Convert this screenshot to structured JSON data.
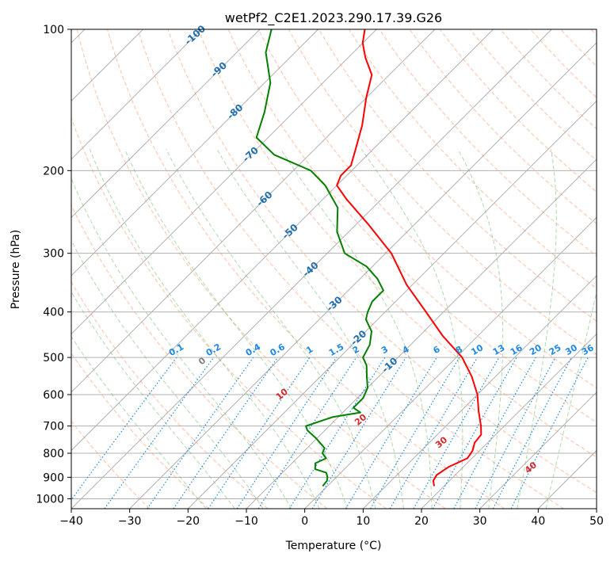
{
  "chart_data": {
    "type": "line",
    "title": "wetPf2_C2E1.2023.290.17.39.G26",
    "xlabel": "Temperature (°C)",
    "ylabel": "Pressure (hPa)",
    "xlim": [
      -40,
      50
    ],
    "ylim": [
      1050,
      100
    ],
    "x_ticks": [
      -40,
      -30,
      -20,
      -10,
      0,
      10,
      20,
      30,
      40,
      50
    ],
    "y_ticks": [
      100,
      200,
      300,
      400,
      500,
      600,
      700,
      800,
      900,
      1000
    ],
    "skew": 35,
    "colors": {
      "temperature": "#ff0000",
      "dewpoint": "#008000",
      "dry_adiabat": "#ff8c5a",
      "moist_adiabat": "#5fb55f",
      "mixing_ratio": "#1e88e5",
      "isotherm_label": "#1f6fb0",
      "dry_label": "#d62728",
      "grid": "#b0b0b0"
    },
    "series": [
      {
        "name": "Temperature",
        "points": [
          [
            18.3,
            940
          ],
          [
            17.2,
            915
          ],
          [
            16.8,
            890
          ],
          [
            17.5,
            855
          ],
          [
            19.2,
            820
          ],
          [
            18.8,
            790
          ],
          [
            17.8,
            760
          ],
          [
            17.5,
            730
          ],
          [
            16.0,
            700
          ],
          [
            13.0,
            650
          ],
          [
            10.0,
            600
          ],
          [
            6.0,
            550
          ],
          [
            1.0,
            500
          ],
          [
            -6.0,
            450
          ],
          [
            -13.0,
            400
          ],
          [
            -21.0,
            350
          ],
          [
            -29.0,
            300
          ],
          [
            -38.0,
            260
          ],
          [
            -46.0,
            230
          ],
          [
            -50.0,
            215
          ],
          [
            -51.0,
            205
          ],
          [
            -51.0,
            195
          ],
          [
            -53.0,
            180
          ],
          [
            -56.0,
            160
          ],
          [
            -60.0,
            140
          ],
          [
            -63.0,
            125
          ],
          [
            -67.0,
            115
          ],
          [
            -70.0,
            107
          ],
          [
            -72.0,
            100
          ]
        ]
      },
      {
        "name": "Dewpoint",
        "points": [
          [
            -0.8,
            940
          ],
          [
            -1.0,
            915
          ],
          [
            -1.5,
            900
          ],
          [
            -2.5,
            880
          ],
          [
            -5.0,
            865
          ],
          [
            -6.0,
            840
          ],
          [
            -5.0,
            820
          ],
          [
            -6.5,
            800
          ],
          [
            -7.0,
            780
          ],
          [
            -10.0,
            745
          ],
          [
            -13.0,
            715
          ],
          [
            -14.0,
            700
          ],
          [
            -11.0,
            670
          ],
          [
            -7.0,
            655
          ],
          [
            -9.0,
            640
          ],
          [
            -9.0,
            610
          ],
          [
            -10.0,
            580
          ],
          [
            -12.0,
            550
          ],
          [
            -14.0,
            520
          ],
          [
            -16.0,
            500
          ],
          [
            -17.0,
            470
          ],
          [
            -19.0,
            440
          ],
          [
            -22.0,
            415
          ],
          [
            -23.0,
            400
          ],
          [
            -24.0,
            380
          ],
          [
            -24.0,
            360
          ],
          [
            -27.0,
            340
          ],
          [
            -31.0,
            320
          ],
          [
            -37.0,
            300
          ],
          [
            -42.0,
            270
          ],
          [
            -46.0,
            240
          ],
          [
            -52.0,
            215
          ],
          [
            -57.0,
            200
          ],
          [
            -66.0,
            185
          ],
          [
            -72.0,
            170
          ],
          [
            -75.0,
            150
          ],
          [
            -79.0,
            130
          ],
          [
            -85.0,
            112
          ],
          [
            -88.0,
            100
          ]
        ]
      }
    ],
    "isotherm_labels": [
      "-100",
      "-90",
      "-80",
      "-70",
      "-60",
      "-50",
      "-40",
      "-30",
      "-20",
      "-10"
    ],
    "isotherm_label_values": [
      -100,
      -90,
      -80,
      -70,
      -60,
      -50,
      -40,
      -30,
      -20,
      -10
    ],
    "mixing_ratio_labels": [
      "0.1",
      "0.2",
      "0.4",
      "0.6",
      "1",
      "1.5",
      "2",
      "3",
      "4",
      "6",
      "8",
      "10",
      "13",
      "16",
      "20",
      "25",
      "30",
      "36"
    ],
    "mixing_ratio_values": [
      0.1,
      0.2,
      0.4,
      0.6,
      1,
      1.5,
      2,
      3,
      4,
      6,
      8,
      10,
      13,
      16,
      20,
      25,
      30,
      36
    ],
    "mixing_ratio_label_pressure": 500,
    "dry_adiabat_labels": [
      "0",
      "10",
      "20",
      "30",
      "40"
    ],
    "dry_adiabat_values": [
      0,
      10,
      20,
      30,
      40
    ]
  }
}
